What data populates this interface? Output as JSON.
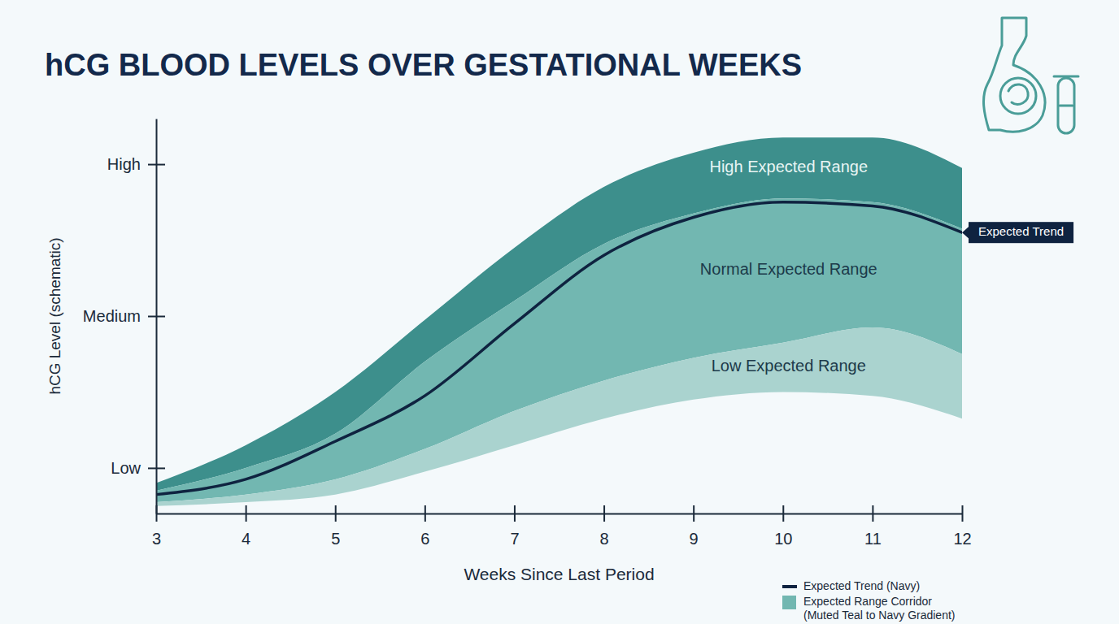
{
  "chart_data": {
    "type": "area",
    "title": "hCG BLOOD LEVELS OVER GESTATIONAL WEEKS",
    "x_label": "Weeks Since Last Period",
    "y_label": "hCG Level (schematic)",
    "x": [
      3,
      4,
      5,
      6,
      7,
      8,
      9,
      10,
      11,
      12
    ],
    "xlim": [
      3,
      12
    ],
    "xticks": [
      3,
      4,
      5,
      6,
      7,
      8,
      9,
      10,
      11,
      12
    ],
    "ylim": [
      -2,
      102
    ],
    "yticks": [
      {
        "value": 10,
        "label": "Low"
      },
      {
        "value": 50,
        "label": "Medium"
      },
      {
        "value": 90,
        "label": "High"
      }
    ],
    "grid": false,
    "legend": "bottom right",
    "series": [
      {
        "name": "High Expected Range",
        "type": "area",
        "color": "#3d8f8c",
        "lower": [
          4,
          10,
          19,
          38,
          54,
          69,
          77,
          81,
          80,
          73
        ],
        "values": [
          6,
          16,
          30,
          49,
          68,
          84,
          93,
          97,
          97,
          89
        ]
      },
      {
        "name": "Normal Expected Range",
        "type": "area",
        "color": "#72b7b1",
        "lower": [
          1,
          3,
          7,
          15,
          25,
          33,
          39,
          43,
          47,
          40
        ],
        "values": [
          4,
          10,
          19,
          38,
          54,
          69,
          77,
          81,
          80,
          73
        ]
      },
      {
        "name": "Low Expected Range",
        "type": "area",
        "color": "#aad3cf",
        "lower": [
          0,
          1,
          3,
          9,
          16,
          23,
          28,
          30,
          29,
          23
        ],
        "values": [
          1,
          3,
          7,
          15,
          25,
          33,
          39,
          43,
          47,
          40
        ]
      },
      {
        "name": "Expected Trend",
        "type": "line",
        "color": "#0f2340",
        "values": [
          3,
          7,
          17,
          29,
          48,
          66,
          76,
          80,
          79,
          72
        ]
      }
    ],
    "legend_entries": [
      {
        "label": "Expected Trend (Navy)",
        "type": "line",
        "color": "#0f2340"
      },
      {
        "label": "Expected Range Corridor (Muted Teal to Navy Gradient)",
        "type": "area",
        "color": "#72b7b1"
      }
    ]
  }
}
